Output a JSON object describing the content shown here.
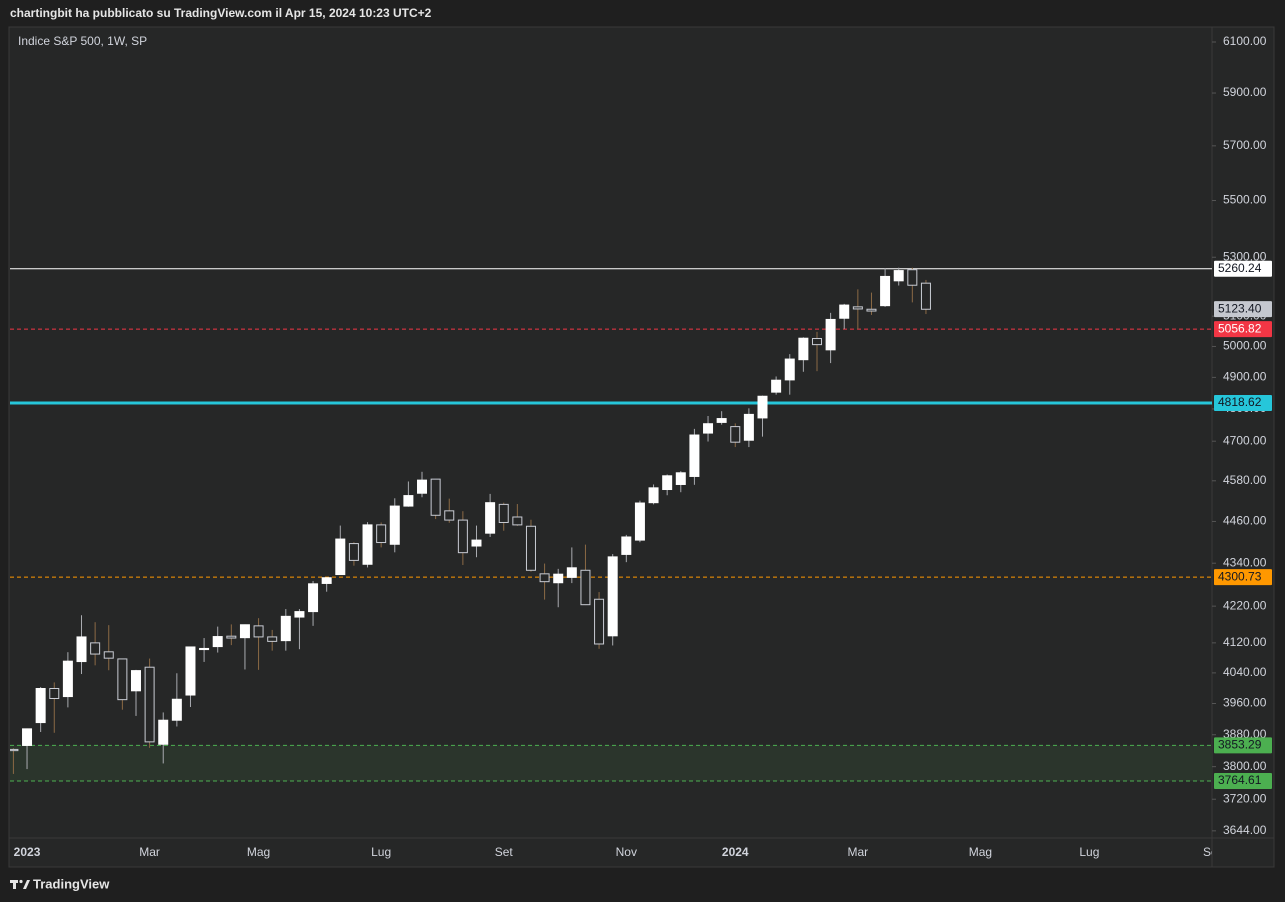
{
  "header": {
    "text": "chartingbit ha pubblicato su TradingView.com il Apr 15, 2024 10:23 UTC+2"
  },
  "footer": {
    "brand": "TradingView"
  },
  "chart_data": {
    "type": "candlestick",
    "title": "Indice S&P 500, 1W, SP",
    "log_scale": true,
    "grid": false,
    "up_color": "#ffffff",
    "down_color": "#262727",
    "down_border": "#c9ccd4",
    "up_wick": "#a9abb0",
    "down_wick": "#8b6a45",
    "categories": [
      null,
      "2023",
      null,
      null,
      null,
      null,
      null,
      null,
      null,
      null,
      "Mar",
      null,
      null,
      null,
      null,
      null,
      null,
      null,
      "Mag",
      null,
      null,
      null,
      null,
      null,
      null,
      null,
      null,
      "Lug",
      null,
      null,
      null,
      null,
      null,
      null,
      null,
      null,
      "Set",
      null,
      null,
      null,
      null,
      null,
      null,
      null,
      null,
      "Nov",
      null,
      null,
      null,
      null,
      null,
      null,
      null,
      "2024",
      null,
      null,
      null,
      null,
      null,
      null,
      null,
      null,
      "Mar",
      null,
      null,
      null,
      null,
      null,
      null,
      null,
      null,
      "Mag",
      null,
      null,
      null,
      null,
      null,
      null,
      null,
      "Lug",
      null,
      null,
      null,
      null,
      null,
      null,
      null,
      null,
      "Set"
    ],
    "open": [
      3843,
      3853,
      3911,
      3999,
      3978,
      4070,
      4120,
      4096,
      4077,
      3993,
      4055,
      3856,
      3917,
      3982,
      4102,
      4110,
      4138,
      4134,
      4166,
      4136,
      4126,
      4190,
      4205,
      4283,
      4308,
      4396,
      4337,
      4450,
      4394,
      4505,
      4543,
      4585,
      4491,
      4464,
      4389,
      4426,
      4510,
      4473,
      4446,
      4310,
      4285,
      4300,
      4320,
      4239,
      4139,
      4365,
      4406,
      4515,
      4554,
      4569,
      4593,
      4725,
      4758,
      4745,
      4703,
      4772,
      4853,
      4892,
      4957,
      5026,
      4989,
      5093,
      5131,
      5123,
      5135,
      5219,
      5257,
      5211,
      null,
      null,
      null,
      null,
      null,
      null,
      null,
      null,
      null,
      null,
      null,
      null,
      null,
      null,
      null,
      null,
      null,
      null,
      null,
      null,
      null
    ],
    "high": [
      3846,
      3896,
      4003,
      4015,
      4095,
      4195,
      4176,
      4168,
      4077,
      4048,
      4078,
      3937,
      4039,
      4110,
      4133,
      4164,
      4170,
      4170,
      4187,
      4155,
      4212,
      4212,
      4290,
      4299,
      4448,
      4400,
      4458,
      4457,
      4528,
      4578,
      4607,
      4584,
      4527,
      4490,
      4448,
      4541,
      4515,
      4511,
      4465,
      4339,
      4324,
      4385,
      4393,
      4259,
      4366,
      4421,
      4521,
      4569,
      4599,
      4609,
      4738,
      4778,
      4793,
      4755,
      4802,
      4842,
      4903,
      4975,
      5030,
      5048,
      5111,
      5141,
      5190,
      5179,
      5262,
      5264,
      5264,
      5222,
      null,
      null,
      null,
      null,
      null,
      null,
      null,
      null,
      null,
      null,
      null,
      null,
      null,
      null,
      null,
      null,
      null,
      null,
      null,
      null,
      null
    ],
    "low": [
      3782,
      3794,
      3887,
      3885,
      3950,
      4037,
      4060,
      4047,
      3944,
      3928,
      3847,
      3808,
      3901,
      3951,
      4069,
      4094,
      4114,
      4049,
      4048,
      4099,
      4099,
      4103,
      4166,
      4260,
      4307,
      4333,
      4328,
      4385,
      4371,
      4503,
      4531,
      4467,
      4456,
      4335,
      4357,
      4415,
      4433,
      4447,
      4316,
      4238,
      4217,
      4284,
      4223,
      4104,
      4113,
      4343,
      4400,
      4510,
      4537,
      4546,
      4568,
      4699,
      4751,
      4682,
      4682,
      4714,
      4845,
      4845,
      4918,
      4920,
      4946,
      5057,
      5057,
      5104,
      5131,
      5203,
      5146,
      5107,
      null,
      null,
      null,
      null,
      null,
      null,
      null,
      null,
      null,
      null,
      null,
      null,
      null,
      null,
      null,
      null,
      null,
      null,
      null,
      null,
      null
    ],
    "close": [
      3840,
      3895,
      3999,
      3973,
      4071,
      4136,
      4090,
      4079,
      3970,
      4046,
      3862,
      3917,
      3971,
      4109,
      4105,
      4137,
      4133,
      4169,
      4136,
      4124,
      4192,
      4205,
      4282,
      4299,
      4409,
      4348,
      4450,
      4399,
      4505,
      4536,
      4582,
      4478,
      4464,
      4370,
      4406,
      4515,
      4457,
      4450,
      4320,
      4288,
      4309,
      4327,
      4224,
      4117,
      4358,
      4415,
      4514,
      4559,
      4595,
      4604,
      4719,
      4754,
      4770,
      4697,
      4783,
      4840,
      4891,
      4959,
      5027,
      5006,
      5089,
      5137,
      5124,
      5117,
      5234,
      5254,
      5204,
      5123,
      null,
      null,
      null,
      null,
      null,
      null,
      null,
      null,
      null,
      null,
      null,
      null,
      null,
      null,
      null,
      null,
      null,
      null,
      null,
      null,
      null
    ],
    "ylim": [
      3627,
      6156
    ],
    "yticks": [
      {
        "value": 6100,
        "label": "6100.00"
      },
      {
        "value": 5900,
        "label": "5900.00"
      },
      {
        "value": 5700,
        "label": "5700.00"
      },
      {
        "value": 5500,
        "label": "5500.00"
      },
      {
        "value": 5300,
        "label": "5300.00"
      },
      {
        "value": 5100,
        "label": "5100.00"
      },
      {
        "value": 5000,
        "label": "5000.00"
      },
      {
        "value": 4900,
        "label": "4900.00"
      },
      {
        "value": 4800,
        "label": "4800.00"
      },
      {
        "value": 4700,
        "label": "4700.00"
      },
      {
        "value": 4580,
        "label": "4580.00"
      },
      {
        "value": 4460,
        "label": "4460.00"
      },
      {
        "value": 4340,
        "label": "4340.00"
      },
      {
        "value": 4220,
        "label": "4220.00"
      },
      {
        "value": 4120,
        "label": "4120.00"
      },
      {
        "value": 4040,
        "label": "4040.00"
      },
      {
        "value": 3960,
        "label": "3960.00"
      },
      {
        "value": 3880,
        "label": "3880.00"
      },
      {
        "value": 3800,
        "label": "3800.00"
      },
      {
        "value": 3720,
        "label": "3720.00"
      },
      {
        "value": 3644,
        "label": "3644.00"
      }
    ],
    "levels": [
      {
        "value": 5260.24,
        "color": "#ffffff",
        "text_color": "#131722",
        "style": "solid",
        "width": 1
      },
      {
        "value": 5056.82,
        "color": "#f23645",
        "text_color": "#ffffff",
        "style": "dashed",
        "width": 1
      },
      {
        "value": 4818.62,
        "color": "#26c6da",
        "text_color": "#131722",
        "style": "solid",
        "width": 3
      },
      {
        "value": 4300.73,
        "color": "#ff9800",
        "text_color": "#131722",
        "style": "dashed",
        "width": 1
      },
      {
        "value": 3853.29,
        "color": "#4caf50",
        "text_color": "#131722",
        "style": "dashed",
        "width": 1,
        "fill": "#2b352c"
      },
      {
        "value": 3764.61,
        "color": "#4caf50",
        "text_color": "#131722",
        "style": "dashed",
        "width": 1
      }
    ],
    "last_price": {
      "value": 5123.4,
      "label": "5123.40",
      "color": "#c5c8cf",
      "text_color": "#131722"
    }
  }
}
